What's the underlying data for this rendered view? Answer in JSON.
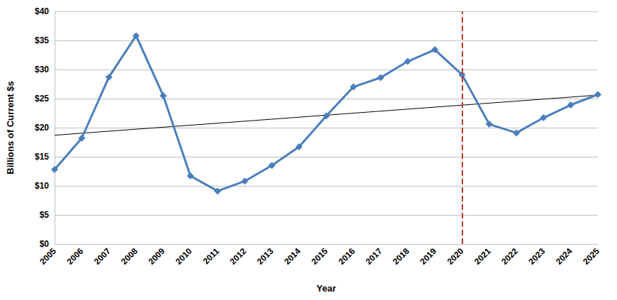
{
  "chart_data": {
    "type": "line",
    "x_label": "Year",
    "y_label": "Billions of Current $s",
    "categories": [
      "2005",
      "2006",
      "2007",
      "2008",
      "2009",
      "2010",
      "2011",
      "2012",
      "2013",
      "2014",
      "2015",
      "2016",
      "2017",
      "2018",
      "2019",
      "2020",
      "2021",
      "2022",
      "2023",
      "2024",
      "2025"
    ],
    "series": [
      {
        "type": "line",
        "color": "#4a7ebb",
        "marker": "diamond",
        "line_style": "solid",
        "values": [
          12.8,
          18.2,
          28.7,
          35.8,
          25.5,
          11.7,
          9.1,
          10.8,
          13.5,
          16.7,
          22.0,
          27.0,
          28.6,
          31.4,
          33.4,
          29.1,
          20.6,
          19.1,
          21.7,
          23.9,
          25.7
        ]
      },
      {
        "type": "line",
        "color": "#000000",
        "marker": "none",
        "line_style": "solid",
        "x": [
          "2005",
          "2025"
        ],
        "values": [
          18.7,
          25.6
        ]
      }
    ],
    "annotations": [
      {
        "type": "vline",
        "x": "2020",
        "color": "#c0392b",
        "line_style": "dashed"
      }
    ],
    "ylim": [
      0,
      40
    ],
    "yticks": [
      {
        "value": 0,
        "label": "$0"
      },
      {
        "value": 5,
        "label": "$5"
      },
      {
        "value": 10,
        "label": "$10"
      },
      {
        "value": 15,
        "label": "$15"
      },
      {
        "value": 20,
        "label": "$20"
      },
      {
        "value": 25,
        "label": "$25"
      },
      {
        "value": 30,
        "label": "$30"
      },
      {
        "value": 35,
        "label": "$35"
      },
      {
        "value": 40,
        "label": "$40"
      }
    ],
    "grid": true
  }
}
